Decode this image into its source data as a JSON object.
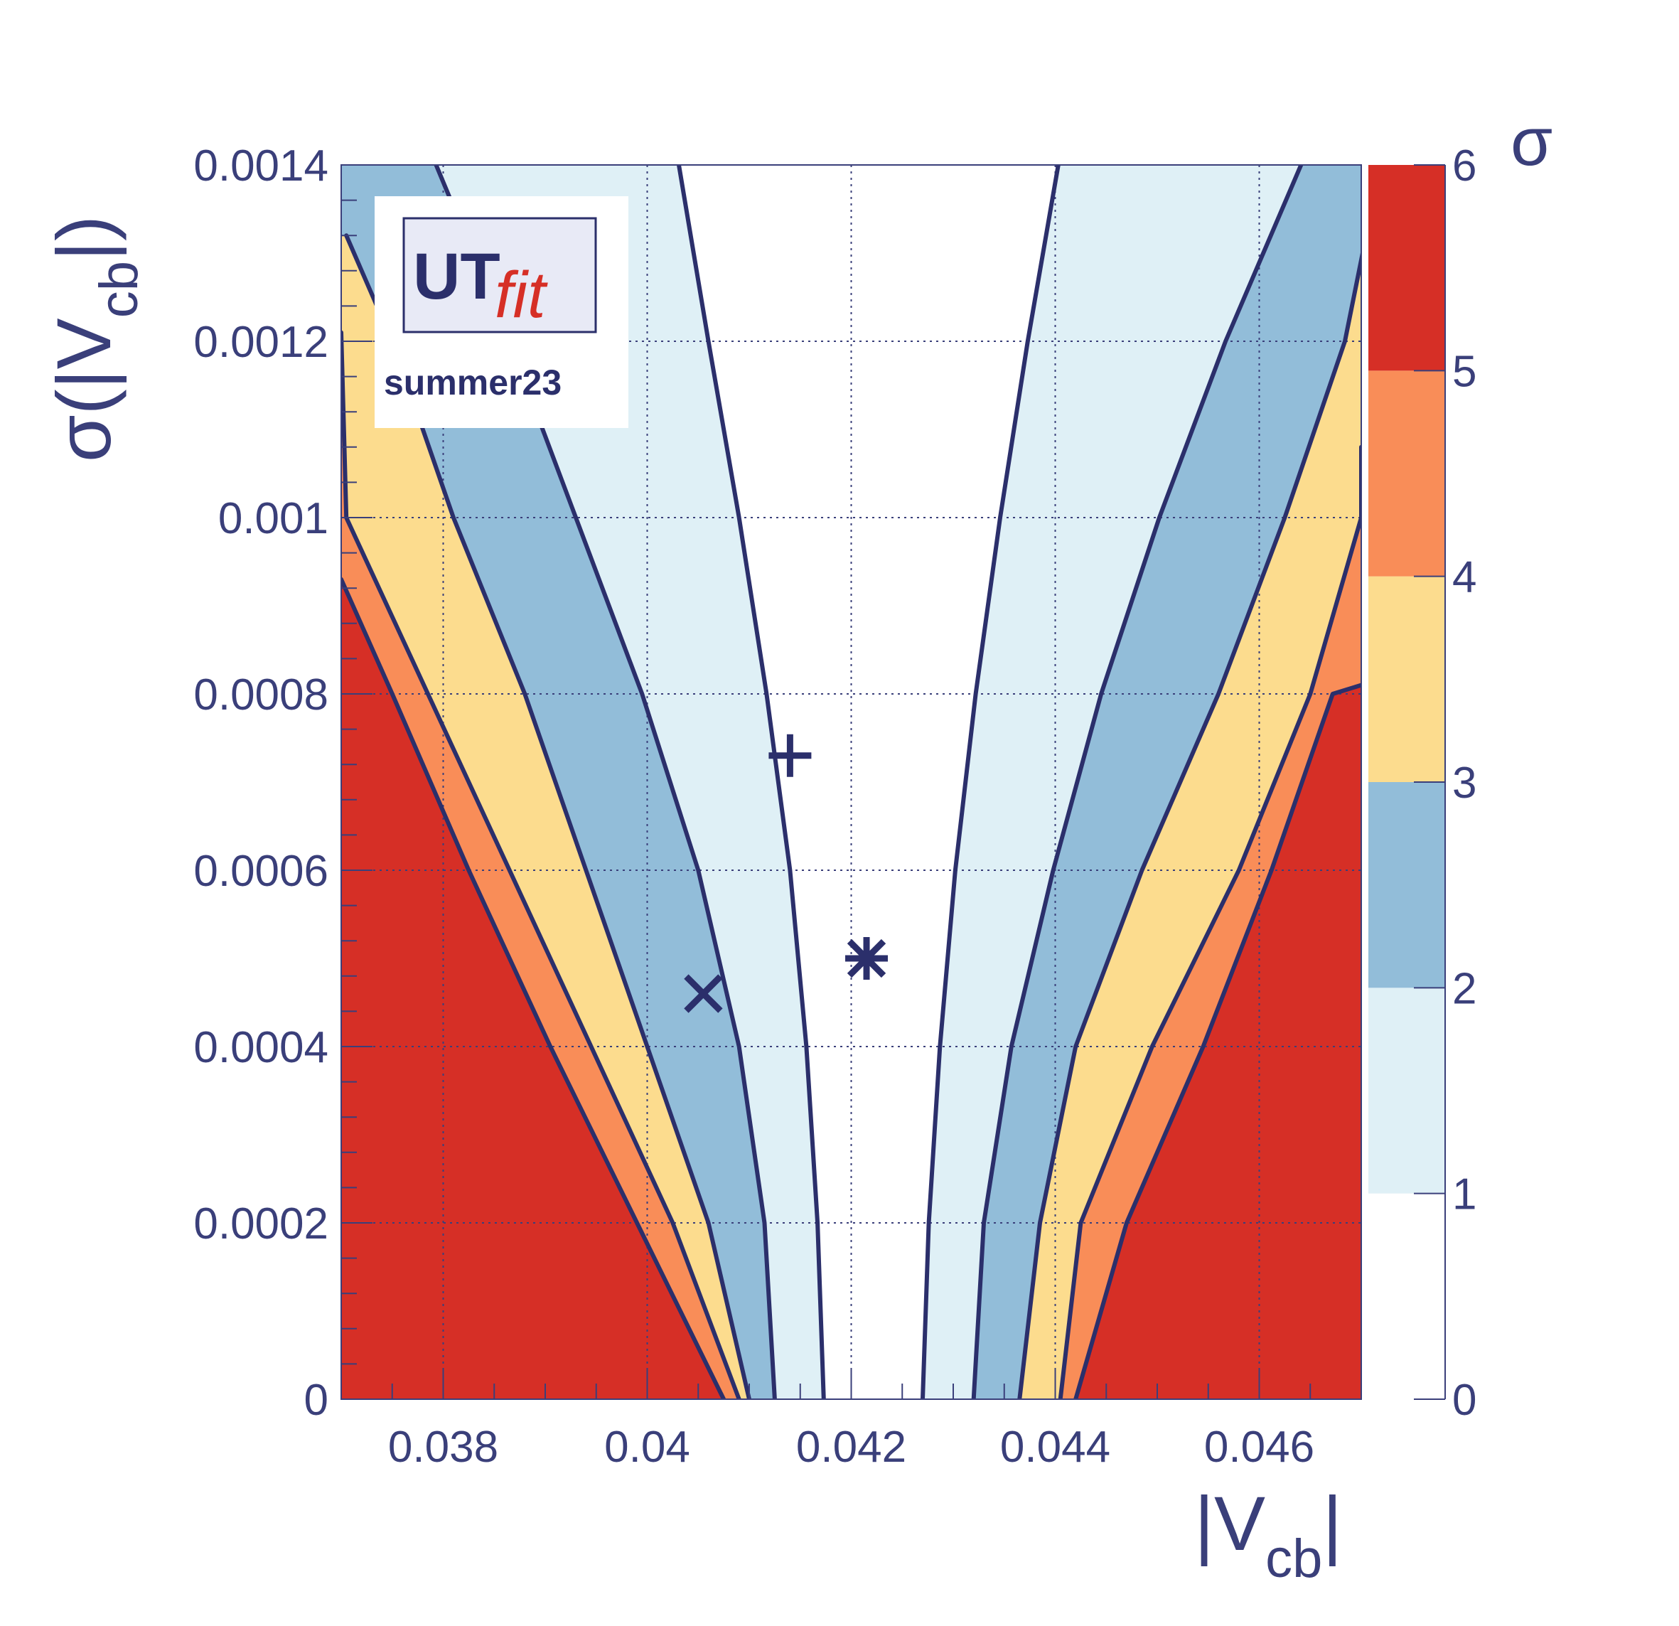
{
  "chart_data": {
    "type": "heatmap",
    "title": "",
    "xlabel": {
      "main": "|V",
      "sub": "cb",
      "close": "|"
    },
    "ylabel": {
      "main": "σ(|V",
      "sub": "cb",
      "close": "|)"
    },
    "colorbar_label": "σ",
    "xlim": [
      0.037,
      0.047
    ],
    "ylim": [
      0,
      0.0014
    ],
    "x_ticks": [
      0.038,
      0.04,
      0.042,
      0.044,
      0.046
    ],
    "x_tick_labels": [
      "0.038",
      "0.04",
      "0.042",
      "0.044",
      "0.046"
    ],
    "y_ticks": [
      0,
      0.0002,
      0.0004,
      0.0006,
      0.0008,
      0.001,
      0.0012,
      0.0014
    ],
    "y_tick_labels": [
      "0",
      "0.0002",
      "0.0004",
      "0.0006",
      "0.0008",
      "0.001",
      "0.0012",
      "0.0014"
    ],
    "grid": true,
    "colorbar": {
      "levels": [
        0,
        1,
        2,
        3,
        4,
        5,
        6
      ],
      "tick_labels": [
        "0",
        "1",
        "2",
        "3",
        "4",
        "5",
        "6"
      ],
      "colors": [
        "#ffffff",
        "#dff0f6",
        "#92bdd9",
        "#fcdc8e",
        "#f98d58",
        "#d62f26"
      ]
    },
    "contours": [
      {
        "sigma": 1,
        "side": "left",
        "points": [
          [
            0.04173,
            0
          ],
          [
            0.04167,
            0.0002
          ],
          [
            0.04156,
            0.0004
          ],
          [
            0.0414,
            0.0006
          ],
          [
            0.04117,
            0.0008
          ],
          [
            0.0409,
            0.001
          ],
          [
            0.0406,
            0.0012
          ],
          [
            0.04031,
            0.0014
          ]
        ]
      },
      {
        "sigma": 1,
        "side": "right",
        "points": [
          [
            0.0427,
            0
          ],
          [
            0.04276,
            0.0002
          ],
          [
            0.04287,
            0.0004
          ],
          [
            0.04302,
            0.0006
          ],
          [
            0.04322,
            0.0008
          ],
          [
            0.04346,
            0.001
          ],
          [
            0.04373,
            0.0012
          ],
          [
            0.04403,
            0.0014
          ]
        ]
      },
      {
        "sigma": 2,
        "side": "left",
        "points": [
          [
            0.04125,
            0
          ],
          [
            0.04115,
            0.0002
          ],
          [
            0.0409,
            0.0004
          ],
          [
            0.0405,
            0.0006
          ],
          [
            0.03995,
            0.0008
          ],
          [
            0.0393,
            0.001
          ],
          [
            0.03865,
            0.0012
          ],
          [
            0.03793,
            0.0014
          ]
        ]
      },
      {
        "sigma": 2,
        "side": "right",
        "points": [
          [
            0.0432,
            0
          ],
          [
            0.0433,
            0.0002
          ],
          [
            0.04357,
            0.0004
          ],
          [
            0.04398,
            0.0006
          ],
          [
            0.04445,
            0.0008
          ],
          [
            0.04502,
            0.001
          ],
          [
            0.04567,
            0.0012
          ],
          [
            0.04641,
            0.0014
          ]
        ]
      },
      {
        "sigma": 3,
        "side": "left",
        "points": [
          [
            0.041,
            0
          ],
          [
            0.0406,
            0.0002
          ],
          [
            0.04,
            0.0004
          ],
          [
            0.0394,
            0.0006
          ],
          [
            0.0388,
            0.0008
          ],
          [
            0.0381,
            0.001
          ],
          [
            0.0375,
            0.0012
          ],
          [
            0.03705,
            0.00132
          ]
        ]
      },
      {
        "sigma": 3,
        "side": "right",
        "points": [
          [
            0.04365,
            0
          ],
          [
            0.04385,
            0.0002
          ],
          [
            0.0442,
            0.0004
          ],
          [
            0.04485,
            0.0006
          ],
          [
            0.0456,
            0.0008
          ],
          [
            0.04625,
            0.001
          ],
          [
            0.04684,
            0.0012
          ],
          [
            0.0471,
            0.00135
          ]
        ]
      },
      {
        "sigma": 4,
        "side": "left",
        "points": [
          [
            0.0409,
            0
          ],
          [
            0.04025,
            0.0002
          ],
          [
            0.03945,
            0.0004
          ],
          [
            0.03865,
            0.0006
          ],
          [
            0.03785,
            0.0008
          ],
          [
            0.03705,
            0.001
          ],
          [
            0.037,
            0.00121
          ]
        ]
      },
      {
        "sigma": 4,
        "side": "right",
        "points": [
          [
            0.04405,
            0
          ],
          [
            0.04425,
            0.0002
          ],
          [
            0.04495,
            0.0004
          ],
          [
            0.0458,
            0.0006
          ],
          [
            0.0465,
            0.0008
          ],
          [
            0.047,
            0.001
          ],
          [
            0.047,
            0.00108
          ]
        ]
      },
      {
        "sigma": 5,
        "side": "left",
        "points": [
          [
            0.04075,
            0
          ],
          [
            0.0399,
            0.0002
          ],
          [
            0.03905,
            0.0004
          ],
          [
            0.03825,
            0.0006
          ],
          [
            0.0375,
            0.0008
          ],
          [
            0.037,
            0.00093
          ]
        ]
      },
      {
        "sigma": 5,
        "side": "right",
        "points": [
          [
            0.0442,
            0
          ],
          [
            0.0447,
            0.0002
          ],
          [
            0.04545,
            0.0004
          ],
          [
            0.04612,
            0.0006
          ],
          [
            0.04672,
            0.0008
          ],
          [
            0.047,
            0.00081
          ]
        ]
      }
    ],
    "markers": [
      {
        "symbol": "plus",
        "x": 0.0414,
        "y": 0.00073
      },
      {
        "symbol": "cross",
        "x": 0.04055,
        "y": 0.00046
      },
      {
        "symbol": "asterisk",
        "x": 0.04215,
        "y": 0.0005
      }
    ]
  },
  "logo": {
    "line1": "UT",
    "line2": "fit",
    "tag": "summer23"
  }
}
